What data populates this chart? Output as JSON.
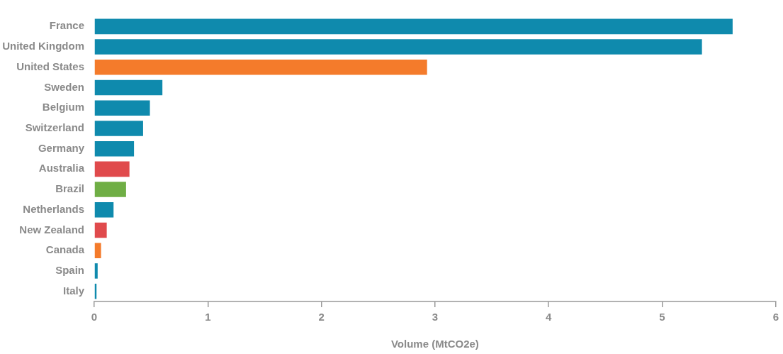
{
  "chart_data": {
    "type": "bar",
    "orientation": "horizontal",
    "xlabel": "Volume (MtCO2e)",
    "categories": [
      "France",
      "United Kingdom",
      "United States",
      "Sweden",
      "Belgium",
      "Switzerland",
      "Germany",
      "Australia",
      "Brazil",
      "Netherlands",
      "New Zealand",
      "Canada",
      "Spain",
      "Italy"
    ],
    "values": [
      5.62,
      5.35,
      2.93,
      0.6,
      0.49,
      0.43,
      0.35,
      0.31,
      0.28,
      0.17,
      0.11,
      0.06,
      0.03,
      0.02
    ],
    "colors": [
      "#0f8aad",
      "#0f8aad",
      "#f47b2b",
      "#0f8aad",
      "#0f8aad",
      "#0f8aad",
      "#0f8aad",
      "#e04a4c",
      "#6fae45",
      "#0f8aad",
      "#e04a4c",
      "#f47b2b",
      "#0f8aad",
      "#0f8aad"
    ],
    "xlim": [
      0,
      6
    ],
    "xticks": [
      0,
      1,
      2,
      3,
      4,
      5,
      6
    ],
    "grid": false,
    "legend": false
  }
}
